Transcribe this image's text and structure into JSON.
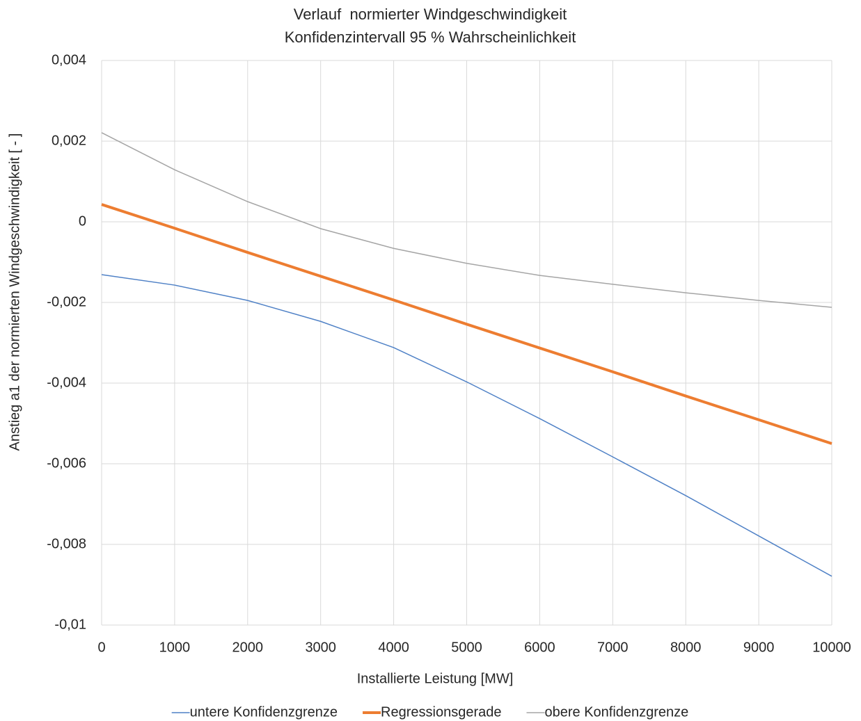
{
  "chart_data": {
    "type": "line",
    "title": "Verlauf  normierter Windgeschwindigkeit",
    "subtitle": "Konfidenzintervall 95 % Wahrscheinlichkeit",
    "xlabel": "Installierte Leistung [MW]",
    "ylabel": "Anstieg a1 der normierten Windgeschwindigkeit [ - ]",
    "x": [
      0,
      1000,
      2000,
      3000,
      4000,
      5000,
      6000,
      7000,
      8000,
      9000,
      10000
    ],
    "series": [
      {
        "name": "untere Konfidenzgrenze",
        "color": "#4f81c6",
        "width": 1.5,
        "values": [
          -0.00131,
          -0.00157,
          -0.00195,
          -0.00247,
          -0.00312,
          -0.00397,
          -0.00488,
          -0.00583,
          -0.00679,
          -0.00779,
          -0.00879
        ]
      },
      {
        "name": "Regressionsgerade",
        "color": "#ed7d31",
        "width": 4,
        "values": [
          0.00043,
          -0.00016,
          -0.00076,
          -0.00135,
          -0.00194,
          -0.00254,
          -0.00313,
          -0.00372,
          -0.00432,
          -0.00491,
          -0.0055
        ]
      },
      {
        "name": "obere Konfidenzgrenze",
        "color": "#a5a5a5",
        "width": 1.5,
        "values": [
          0.00221,
          0.00129,
          0.0005,
          -0.00017,
          -0.00066,
          -0.00103,
          -0.00133,
          -0.00155,
          -0.00176,
          -0.00195,
          -0.00212
        ]
      }
    ],
    "xlim": [
      0,
      10000
    ],
    "xticks": [
      0,
      1000,
      2000,
      3000,
      4000,
      5000,
      6000,
      7000,
      8000,
      9000,
      10000
    ],
    "ylim": [
      -0.01,
      0.004
    ],
    "yticks": [
      {
        "value": -0.01,
        "label": "-0,01"
      },
      {
        "value": -0.008,
        "label": "-0,008"
      },
      {
        "value": -0.006,
        "label": "-0,006"
      },
      {
        "value": -0.004,
        "label": "-0,004"
      },
      {
        "value": -0.002,
        "label": "-0,002"
      },
      0,
      {
        "value": 0.002,
        "label": "0,002"
      },
      {
        "value": 0.004,
        "label": "0,004"
      }
    ],
    "grid": true,
    "legend": "bottom"
  }
}
